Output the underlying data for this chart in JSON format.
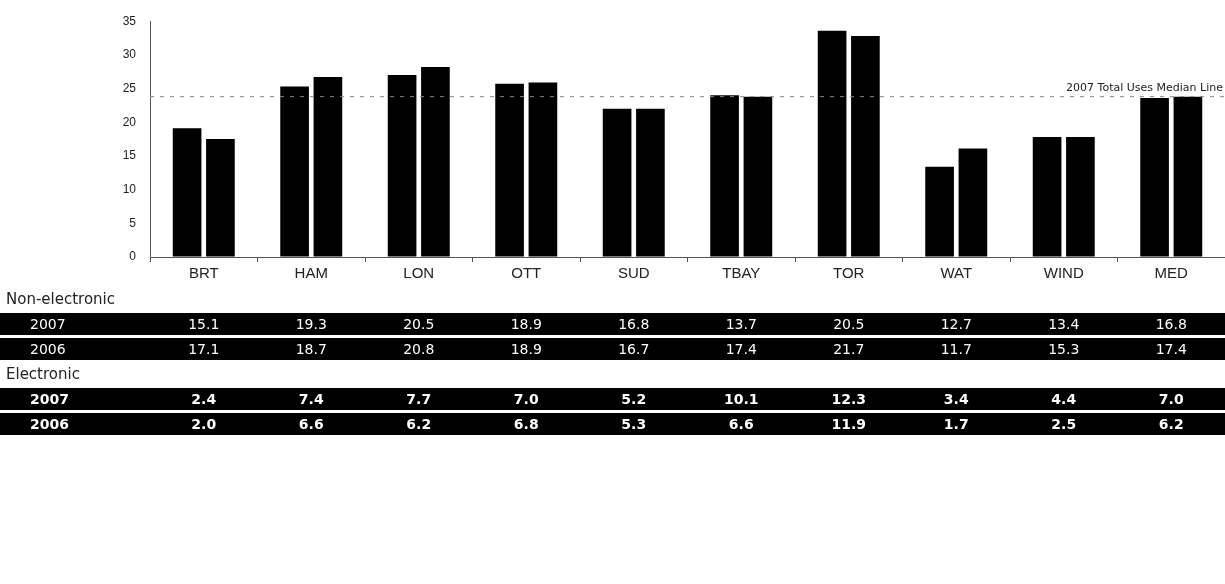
{
  "chart_data": [
    {
      "type": "bar",
      "categories": [
        "BRT",
        "HAM",
        "LON",
        "OTT",
        "SUD",
        "TBAY",
        "TOR",
        "WAT",
        "WIND",
        "MED"
      ],
      "series": [
        {
          "color": "#000000",
          "values": [
            19.1,
            25.3,
            27.0,
            25.7,
            22.0,
            24.0,
            33.6,
            13.4,
            17.8,
            23.6
          ]
        },
        {
          "color": "#000000",
          "values": [
            17.5,
            26.7,
            28.2,
            25.9,
            22.0,
            23.8,
            32.8,
            16.1,
            17.8,
            23.8
          ]
        }
      ],
      "ylim": [
        0,
        35
      ],
      "yticks": [
        0,
        5,
        10,
        15,
        20,
        25,
        30,
        35
      ],
      "grid": false,
      "ref_lines": [
        {
          "axis": "y",
          "value": 23.8,
          "label": "2007 Total Uses Median Line",
          "color": "#888888",
          "line_style": "dashed"
        }
      ]
    },
    {
      "type": "heatmap",
      "title": "Non-electronic",
      "categories": [
        null,
        null,
        null,
        null,
        null,
        null,
        null,
        null,
        null,
        null
      ],
      "y_categories": [
        "2007",
        "2006"
      ],
      "tick_labels": "y",
      "cells": [
        [
          15.1,
          19.3,
          20.5,
          18.9,
          16.8,
          13.7,
          20.5,
          12.7,
          13.4,
          16.8
        ],
        [
          17.1,
          18.7,
          20.8,
          18.9,
          16.7,
          17.4,
          21.7,
          11.7,
          15.3,
          17.4
        ]
      ],
      "cell_labels": [
        [
          "15.1",
          "19.3",
          "20.5",
          "18.9",
          "16.8",
          "13.7",
          "20.5",
          "12.7",
          "13.4",
          "16.8"
        ],
        [
          "17.1",
          "18.7",
          "20.8",
          "18.9",
          "16.7",
          "17.4",
          "21.7",
          "11.7",
          "15.3",
          "17.4"
        ]
      ]
    },
    {
      "type": "heatmap",
      "title": "Electronic",
      "categories": [
        null,
        null,
        null,
        null,
        null,
        null,
        null,
        null,
        null,
        null
      ],
      "y_categories": [
        "2007",
        "2006"
      ],
      "tick_labels": "y",
      "cells": [
        [
          2.4,
          7.4,
          7.7,
          7.0,
          5.2,
          10.1,
          12.3,
          3.4,
          4.4,
          7.0
        ],
        [
          2.0,
          6.6,
          6.2,
          6.8,
          5.3,
          6.6,
          11.9,
          1.7,
          2.5,
          6.2
        ]
      ],
      "cell_labels": [
        [
          "2.4",
          "7.4",
          "7.7",
          "7.0",
          "5.2",
          "10.1",
          "12.3",
          "3.4",
          "4.4",
          "7.0"
        ],
        [
          "2.0",
          "6.6",
          "6.2",
          "6.8",
          "5.3",
          "6.6",
          "11.9",
          "1.7",
          "2.5",
          "6.2"
        ]
      ]
    }
  ]
}
